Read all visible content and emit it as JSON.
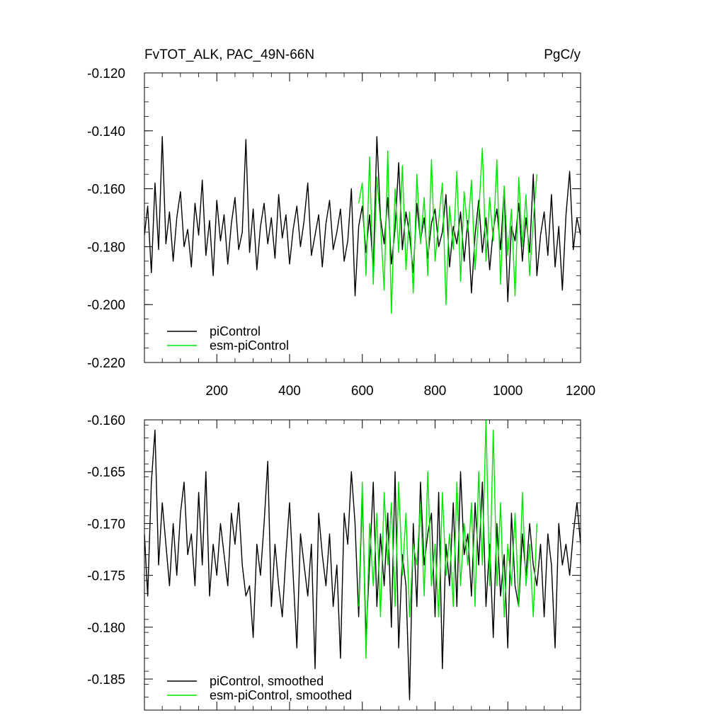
{
  "chart_data": [
    {
      "type": "line",
      "title": "FvTOT_ALK, PAC_49N-66N",
      "units": "PgC/y",
      "xlim": [
        1,
        1200
      ],
      "ylim": [
        -0.22,
        -0.12
      ],
      "x_ticks": [
        200,
        400,
        600,
        800,
        1000,
        1200
      ],
      "y_ticks": [
        -0.12,
        -0.14,
        -0.16,
        -0.18,
        -0.2,
        -0.22
      ],
      "y_tick_labels": [
        "-0.120",
        "-0.140",
        "-0.160",
        "-0.180",
        "-0.200",
        "-0.220"
      ],
      "legend_position": "bottom-left",
      "series": [
        {
          "name": "piControl",
          "color": "#000000",
          "x": [
            1,
            10,
            20,
            30,
            40,
            50,
            60,
            70,
            80,
            90,
            100,
            110,
            120,
            130,
            140,
            150,
            160,
            170,
            180,
            190,
            200,
            210,
            220,
            230,
            240,
            250,
            260,
            270,
            280,
            290,
            300,
            310,
            320,
            330,
            340,
            350,
            360,
            370,
            380,
            390,
            400,
            410,
            420,
            430,
            440,
            450,
            460,
            470,
            480,
            490,
            500,
            510,
            520,
            530,
            540,
            550,
            560,
            570,
            580,
            590,
            600,
            610,
            620,
            630,
            640,
            650,
            660,
            670,
            680,
            690,
            700,
            710,
            720,
            730,
            740,
            750,
            760,
            770,
            780,
            790,
            800,
            810,
            820,
            830,
            840,
            850,
            860,
            870,
            880,
            890,
            900,
            910,
            920,
            930,
            940,
            950,
            960,
            970,
            980,
            990,
            1000,
            1010,
            1020,
            1030,
            1040,
            1050,
            1060,
            1070,
            1080,
            1090,
            1100,
            1110,
            1120,
            1130,
            1140,
            1150,
            1160,
            1170,
            1180,
            1190,
            1200
          ],
          "values": [
            -0.176,
            -0.166,
            -0.189,
            -0.158,
            -0.181,
            -0.142,
            -0.179,
            -0.168,
            -0.185,
            -0.17,
            -0.161,
            -0.18,
            -0.174,
            -0.187,
            -0.165,
            -0.176,
            -0.157,
            -0.183,
            -0.171,
            -0.19,
            -0.164,
            -0.178,
            -0.169,
            -0.186,
            -0.172,
            -0.163,
            -0.181,
            -0.175,
            -0.143,
            -0.182,
            -0.167,
            -0.188,
            -0.173,
            -0.165,
            -0.179,
            -0.17,
            -0.184,
            -0.162,
            -0.177,
            -0.169,
            -0.186,
            -0.174,
            -0.166,
            -0.18,
            -0.171,
            -0.158,
            -0.183,
            -0.176,
            -0.169,
            -0.187,
            -0.172,
            -0.164,
            -0.181,
            -0.175,
            -0.167,
            -0.185,
            -0.178,
            -0.16,
            -0.197,
            -0.173,
            -0.166,
            -0.182,
            -0.169,
            -0.188,
            -0.142,
            -0.17,
            -0.179,
            -0.163,
            -0.186,
            -0.174,
            -0.151,
            -0.181,
            -0.168,
            -0.176,
            -0.189,
            -0.165,
            -0.178,
            -0.17,
            -0.184,
            -0.172,
            -0.167,
            -0.18,
            -0.175,
            -0.162,
            -0.187,
            -0.173,
            -0.179,
            -0.168,
            -0.185,
            -0.171,
            -0.196,
            -0.176,
            -0.164,
            -0.182,
            -0.17,
            -0.188,
            -0.174,
            -0.167,
            -0.181,
            -0.16,
            -0.199,
            -0.173,
            -0.178,
            -0.165,
            -0.185,
            -0.17,
            -0.182,
            -0.155,
            -0.19,
            -0.176,
            -0.168,
            -0.183,
            -0.162,
            -0.187,
            -0.173,
            -0.195,
            -0.169,
            -0.154,
            -0.181,
            -0.17,
            -0.176
          ]
        },
        {
          "name": "esm-piControl",
          "color": "#00e600",
          "x": [
            590,
            600,
            610,
            620,
            630,
            640,
            650,
            660,
            670,
            680,
            690,
            700,
            710,
            720,
            730,
            740,
            750,
            760,
            770,
            780,
            790,
            800,
            810,
            820,
            830,
            840,
            850,
            860,
            870,
            880,
            890,
            900,
            910,
            920,
            930,
            940,
            950,
            960,
            970,
            980,
            990,
            1000,
            1010,
            1020,
            1030,
            1040,
            1050,
            1060,
            1070,
            1080
          ],
          "values": [
            -0.165,
            -0.158,
            -0.19,
            -0.149,
            -0.193,
            -0.156,
            -0.172,
            -0.195,
            -0.147,
            -0.203,
            -0.16,
            -0.182,
            -0.152,
            -0.188,
            -0.168,
            -0.196,
            -0.155,
            -0.179,
            -0.163,
            -0.19,
            -0.15,
            -0.185,
            -0.171,
            -0.158,
            -0.2,
            -0.166,
            -0.181,
            -0.154,
            -0.192,
            -0.161,
            -0.175,
            -0.157,
            -0.188,
            -0.169,
            -0.146,
            -0.185,
            -0.163,
            -0.178,
            -0.15,
            -0.193,
            -0.159,
            -0.183,
            -0.167,
            -0.197,
            -0.156,
            -0.18,
            -0.162,
            -0.19,
            -0.171,
            -0.155
          ]
        }
      ]
    },
    {
      "type": "line",
      "xlim": [
        1,
        1200
      ],
      "ylim": [
        -0.188,
        -0.16
      ],
      "y_ticks": [
        -0.16,
        -0.165,
        -0.17,
        -0.175,
        -0.18,
        -0.185
      ],
      "y_tick_labels": [
        "-0.160",
        "-0.165",
        "-0.170",
        "-0.175",
        "-0.180",
        "-0.185"
      ],
      "legend_position": "bottom-left",
      "series": [
        {
          "name": "piControl, smoothed",
          "color": "#000000",
          "x": [
            1,
            10,
            20,
            30,
            40,
            50,
            60,
            70,
            80,
            90,
            100,
            110,
            120,
            130,
            140,
            150,
            160,
            170,
            180,
            190,
            200,
            210,
            220,
            230,
            240,
            250,
            260,
            270,
            280,
            290,
            300,
            310,
            320,
            330,
            340,
            350,
            360,
            370,
            380,
            390,
            400,
            410,
            420,
            430,
            440,
            450,
            460,
            470,
            480,
            490,
            500,
            510,
            520,
            530,
            540,
            550,
            560,
            570,
            580,
            590,
            600,
            610,
            620,
            630,
            640,
            650,
            660,
            670,
            680,
            690,
            700,
            710,
            720,
            730,
            740,
            750,
            760,
            770,
            780,
            790,
            800,
            810,
            820,
            830,
            840,
            850,
            860,
            870,
            880,
            890,
            900,
            910,
            920,
            930,
            940,
            950,
            960,
            970,
            980,
            990,
            1000,
            1010,
            1020,
            1030,
            1040,
            1050,
            1060,
            1070,
            1080,
            1090,
            1100,
            1110,
            1120,
            1130,
            1140,
            1150,
            1160,
            1170,
            1180,
            1190,
            1200
          ],
          "values": [
            -0.171,
            -0.177,
            -0.166,
            -0.161,
            -0.174,
            -0.168,
            -0.172,
            -0.176,
            -0.17,
            -0.175,
            -0.169,
            -0.166,
            -0.173,
            -0.171,
            -0.176,
            -0.167,
            -0.174,
            -0.165,
            -0.177,
            -0.172,
            -0.175,
            -0.17,
            -0.173,
            -0.176,
            -0.169,
            -0.172,
            -0.168,
            -0.174,
            -0.177,
            -0.176,
            -0.181,
            -0.172,
            -0.175,
            -0.17,
            -0.164,
            -0.178,
            -0.172,
            -0.176,
            -0.179,
            -0.173,
            -0.168,
            -0.175,
            -0.182,
            -0.171,
            -0.174,
            -0.177,
            -0.172,
            -0.184,
            -0.169,
            -0.173,
            -0.176,
            -0.171,
            -0.178,
            -0.174,
            -0.183,
            -0.169,
            -0.172,
            -0.165,
            -0.17,
            -0.179,
            -0.167,
            -0.181,
            -0.174,
            -0.166,
            -0.178,
            -0.171,
            -0.176,
            -0.169,
            -0.18,
            -0.165,
            -0.182,
            -0.173,
            -0.176,
            -0.187,
            -0.17,
            -0.178,
            -0.166,
            -0.174,
            -0.171,
            -0.169,
            -0.179,
            -0.167,
            -0.184,
            -0.172,
            -0.176,
            -0.168,
            -0.178,
            -0.165,
            -0.173,
            -0.171,
            -0.177,
            -0.168,
            -0.174,
            -0.166,
            -0.178,
            -0.172,
            -0.181,
            -0.17,
            -0.177,
            -0.173,
            -0.182,
            -0.169,
            -0.176,
            -0.178,
            -0.171,
            -0.175,
            -0.17,
            -0.174,
            -0.176,
            -0.172,
            -0.179,
            -0.171,
            -0.174,
            -0.182,
            -0.17,
            -0.174,
            -0.172,
            -0.175,
            -0.171,
            -0.168,
            -0.172
          ]
        },
        {
          "name": "esm-piControl, smoothed",
          "color": "#00e600",
          "x": [
            590,
            600,
            610,
            620,
            630,
            640,
            650,
            660,
            670,
            680,
            690,
            700,
            710,
            720,
            730,
            740,
            750,
            760,
            770,
            780,
            790,
            800,
            810,
            820,
            830,
            840,
            850,
            860,
            870,
            880,
            890,
            900,
            910,
            920,
            930,
            940,
            950,
            960,
            970,
            980,
            990,
            1000,
            1010,
            1020,
            1030,
            1040,
            1050,
            1060,
            1070,
            1080
          ],
          "values": [
            -0.178,
            -0.166,
            -0.183,
            -0.17,
            -0.176,
            -0.169,
            -0.179,
            -0.167,
            -0.174,
            -0.168,
            -0.178,
            -0.166,
            -0.175,
            -0.169,
            -0.179,
            -0.172,
            -0.174,
            -0.168,
            -0.177,
            -0.165,
            -0.176,
            -0.172,
            -0.179,
            -0.167,
            -0.175,
            -0.171,
            -0.178,
            -0.166,
            -0.176,
            -0.17,
            -0.174,
            -0.168,
            -0.178,
            -0.165,
            -0.174,
            -0.16,
            -0.176,
            -0.161,
            -0.176,
            -0.168,
            -0.179,
            -0.172,
            -0.176,
            -0.169,
            -0.178,
            -0.167,
            -0.176,
            -0.172,
            -0.179,
            -0.17
          ]
        }
      ]
    }
  ]
}
